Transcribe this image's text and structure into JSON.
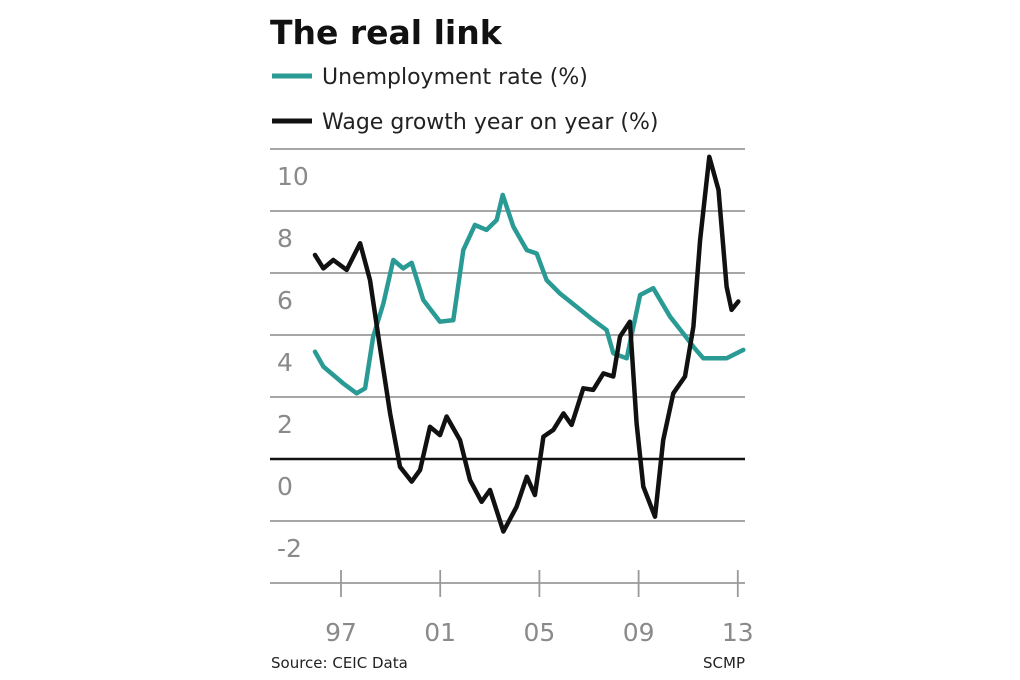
{
  "chart_data": {
    "type": "line",
    "title": "The real link",
    "source": "Source: CEIC Data",
    "credit": "SCMP",
    "xlabel": "",
    "ylabel": "",
    "xlim": [
      1995,
      2013.3
    ],
    "ylim": [
      -4,
      10
    ],
    "x_ticks": [
      {
        "value": 1997,
        "label": "97"
      },
      {
        "value": 2001,
        "label": "01"
      },
      {
        "value": 2005,
        "label": "05"
      },
      {
        "value": 2009,
        "label": "09"
      },
      {
        "value": 2013,
        "label": "13"
      }
    ],
    "y_ticks": [
      {
        "value": 10,
        "label": "10"
      },
      {
        "value": 8,
        "label": "8"
      },
      {
        "value": 6,
        "label": "6"
      },
      {
        "value": 4,
        "label": "4"
      },
      {
        "value": 2,
        "label": "2"
      },
      {
        "value": 0,
        "label": "0"
      },
      {
        "value": -2,
        "label": "-2"
      }
    ],
    "grid": true,
    "legend_placement": "top-left",
    "series": [
      {
        "name": "Unemployment rate (%)",
        "color": "#2a9a95",
        "points": [
          [
            1995.95,
            3.46
          ],
          [
            1996.29,
            2.98
          ],
          [
            1997.09,
            2.44
          ],
          [
            1997.63,
            2.12
          ],
          [
            1997.97,
            2.28
          ],
          [
            1998.3,
            3.95
          ],
          [
            1998.71,
            5.02
          ],
          [
            1999.11,
            6.42
          ],
          [
            1999.51,
            6.15
          ],
          [
            1999.85,
            6.33
          ],
          [
            2000.32,
            5.13
          ],
          [
            2000.99,
            4.43
          ],
          [
            2001.53,
            4.48
          ],
          [
            2001.93,
            6.74
          ],
          [
            2002.4,
            7.55
          ],
          [
            2002.87,
            7.39
          ],
          [
            2003.28,
            7.71
          ],
          [
            2003.52,
            8.52
          ],
          [
            2003.95,
            7.49
          ],
          [
            2004.49,
            6.74
          ],
          [
            2004.89,
            6.63
          ],
          [
            2005.29,
            5.77
          ],
          [
            2005.83,
            5.34
          ],
          [
            2006.5,
            4.91
          ],
          [
            2007.17,
            4.48
          ],
          [
            2007.71,
            4.16
          ],
          [
            2007.98,
            3.41
          ],
          [
            2008.52,
            3.25
          ],
          [
            2009.06,
            5.29
          ],
          [
            2009.59,
            5.51
          ],
          [
            2010.27,
            4.59
          ],
          [
            2010.8,
            4.05
          ],
          [
            2011.21,
            3.62
          ],
          [
            2011.61,
            3.25
          ],
          [
            2012.55,
            3.25
          ],
          [
            2013.22,
            3.52
          ]
        ]
      },
      {
        "name": "Wage growth year on year (%)",
        "color": "#111111",
        "points": [
          [
            1995.95,
            6.58
          ],
          [
            1996.29,
            6.15
          ],
          [
            1996.69,
            6.42
          ],
          [
            1997.23,
            6.1
          ],
          [
            1997.77,
            6.96
          ],
          [
            1998.17,
            5.77
          ],
          [
            1998.57,
            3.62
          ],
          [
            1998.98,
            1.47
          ],
          [
            1999.38,
            -0.25
          ],
          [
            1999.85,
            -0.73
          ],
          [
            2000.19,
            -0.35
          ],
          [
            2000.59,
            1.04
          ],
          [
            2000.99,
            0.77
          ],
          [
            2001.26,
            1.37
          ],
          [
            2001.8,
            0.61
          ],
          [
            2002.2,
            -0.68
          ],
          [
            2002.67,
            -1.38
          ],
          [
            2003.01,
            -1.0
          ],
          [
            2003.55,
            -2.34
          ],
          [
            2004.08,
            -1.54
          ],
          [
            2004.49,
            -0.57
          ],
          [
            2004.82,
            -1.16
          ],
          [
            2005.16,
            0.72
          ],
          [
            2005.56,
            0.94
          ],
          [
            2005.97,
            1.47
          ],
          [
            2006.3,
            1.1
          ],
          [
            2006.77,
            2.28
          ],
          [
            2007.17,
            2.23
          ],
          [
            2007.58,
            2.76
          ],
          [
            2007.98,
            2.66
          ],
          [
            2008.25,
            3.95
          ],
          [
            2008.65,
            4.43
          ],
          [
            2008.92,
            1.15
          ],
          [
            2009.19,
            -0.89
          ],
          [
            2009.66,
            -1.86
          ],
          [
            2009.99,
            0.61
          ],
          [
            2010.4,
            2.12
          ],
          [
            2010.87,
            2.66
          ],
          [
            2011.21,
            4.27
          ],
          [
            2011.48,
            7.06
          ],
          [
            2011.85,
            9.75
          ],
          [
            2012.22,
            8.68
          ],
          [
            2012.55,
            5.56
          ],
          [
            2012.75,
            4.81
          ],
          [
            2013.02,
            5.08
          ]
        ]
      }
    ]
  }
}
